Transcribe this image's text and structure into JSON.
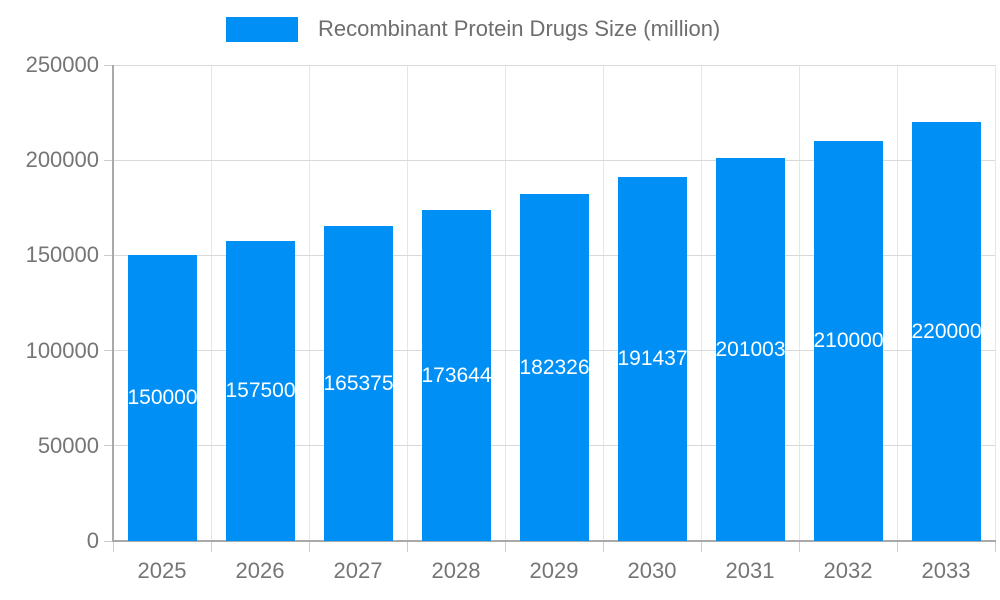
{
  "legend": {
    "label": "Recombinant Protein Drugs Size (million)"
  },
  "chart_data": {
    "type": "bar",
    "title": "Recombinant Protein Drugs Size (million)",
    "categories": [
      "2025",
      "2026",
      "2027",
      "2028",
      "2029",
      "2030",
      "2031",
      "2032",
      "2033"
    ],
    "series": [
      {
        "name": "Recombinant Protein Drugs Size (million)",
        "values": [
          150000,
          157500,
          165375,
          173644,
          182326,
          191437,
          201003,
          210000,
          220000
        ]
      }
    ],
    "bar_labels": [
      "150000",
      "157500",
      "165375",
      "173644",
      "182326",
      "191437",
      "201003",
      "210000",
      "220000"
    ],
    "xlabel": "",
    "ylabel": "",
    "ylim": [
      0,
      250000
    ],
    "yticks": [
      0,
      50000,
      100000,
      150000,
      200000,
      250000
    ],
    "ytick_labels": [
      "0",
      "50000",
      "100000",
      "150000",
      "200000",
      "250000"
    ],
    "grid": "horizontal and vertical",
    "legend_position": "top"
  },
  "colors": {
    "bar": "#008FF5",
    "grid_horizontal": "#D9D9D9",
    "grid_vertical": "#E6E6E6",
    "axis": "#A9A9A9",
    "tick_mark": "#CCCCCC",
    "tick_label": "#757575",
    "legend_text": "#6E6E6E",
    "bar_label": "#FFFFFF",
    "background": "#FFFFFF"
  }
}
